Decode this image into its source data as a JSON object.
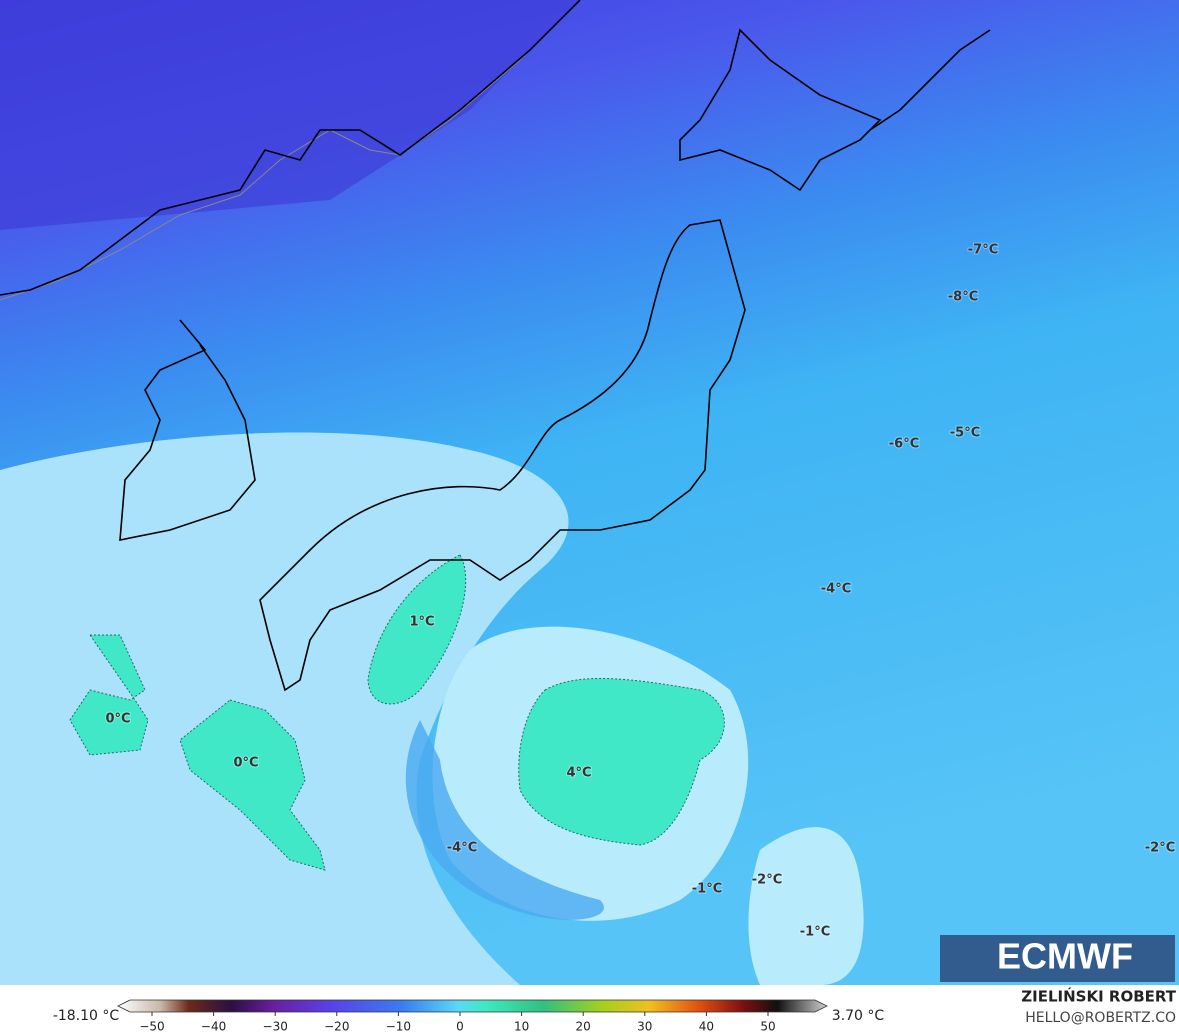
{
  "map": {
    "labels": [
      "-7°C",
      "-8°C",
      "-6°C",
      "-5°C",
      "-4°C",
      "1°C",
      "0°C",
      "0°C",
      "4°C",
      "-4°C",
      "-1°C",
      "-2°C",
      "-2°C",
      "-1°C"
    ],
    "logo": "ECMWF",
    "colorbar": {
      "min_label": "-18.10 °C",
      "max_label": "3.70 °C",
      "ticks": [
        {
          "value": -50,
          "label": "−50"
        },
        {
          "value": -40,
          "label": "−40"
        },
        {
          "value": -30,
          "label": "−30"
        },
        {
          "value": -20,
          "label": "−20"
        },
        {
          "value": -10,
          "label": "−10"
        },
        0,
        10,
        20,
        30,
        40,
        50
      ]
    },
    "credit": {
      "author": "ZIELIŃSKI ROBERT",
      "site": "HELLO@ROBERTZ.CO"
    }
  }
}
